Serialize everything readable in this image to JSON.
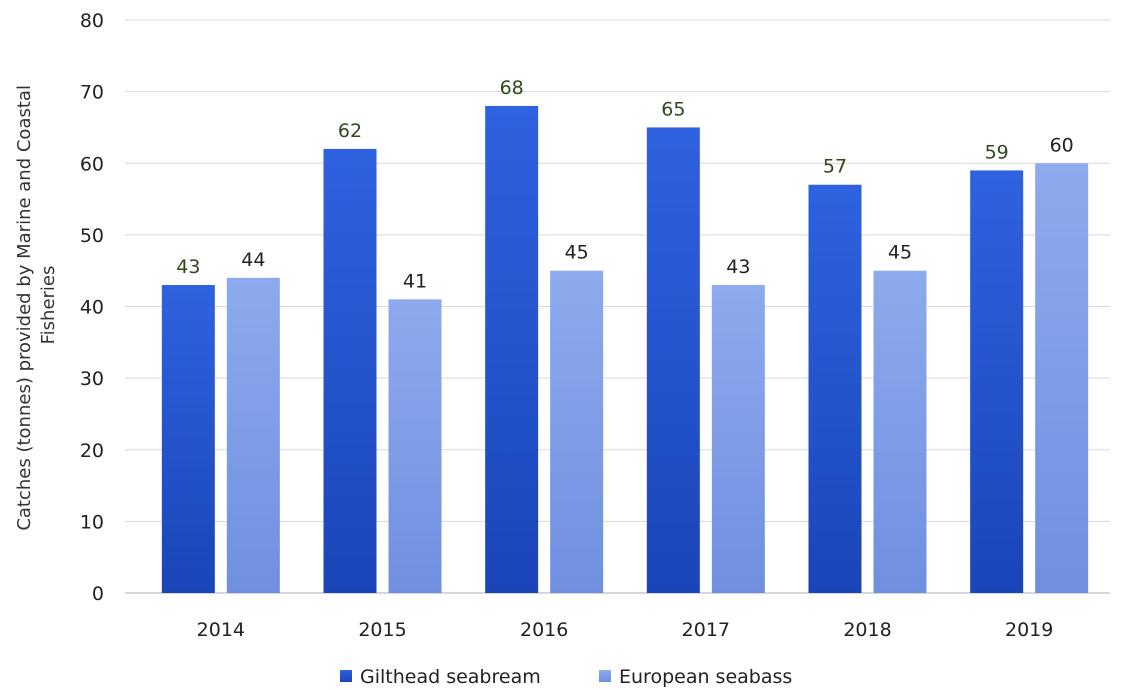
{
  "chart_data": {
    "type": "bar",
    "categories": [
      "2014",
      "2015",
      "2016",
      "2017",
      "2018",
      "2019"
    ],
    "series": [
      {
        "name": "Gilthead seabream",
        "values": [
          43,
          62,
          68,
          65,
          57,
          59
        ],
        "labels": [
          "43",
          "62",
          "68",
          "65",
          "57",
          "59"
        ],
        "color": "#2458d6",
        "label_color": "#2e4a1a"
      },
      {
        "name": "European seabass",
        "values": [
          44,
          41,
          45,
          43,
          45,
          60
        ],
        "labels": [
          "44",
          "41",
          "45",
          "43",
          "45",
          "60"
        ],
        "color": "#7f9ee8",
        "label_color": "#222222"
      }
    ],
    "title": "",
    "xlabel": "",
    "ylabel_lines": [
      "Catches (tonnes) provided by Marine and Coastal",
      "Fisheries"
    ],
    "ylim": [
      0,
      80
    ],
    "yticks": [
      "0",
      "10",
      "20",
      "30",
      "40",
      "50",
      "60",
      "70",
      "80"
    ],
    "grid": true,
    "legend_position": "bottom"
  }
}
